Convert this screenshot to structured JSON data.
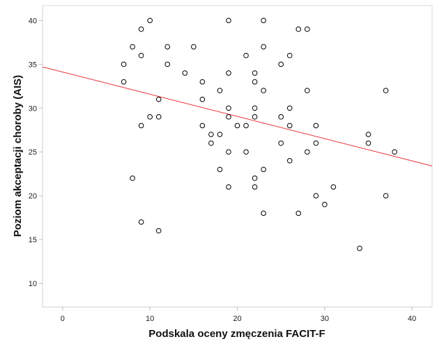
{
  "chart_data": {
    "type": "scatter",
    "title": "",
    "xlabel": "Podskala oceny zmęczenia FACIT-F",
    "ylabel": "Poziom akceptacji choroby (AIS)",
    "xlim": [
      -2.3,
      42.3
    ],
    "ylim": [
      7.3,
      41.7
    ],
    "x_ticks": [
      0,
      10,
      20,
      30,
      40
    ],
    "y_ticks": [
      10,
      15,
      20,
      25,
      30,
      35,
      40
    ],
    "x_tick_labels": [
      "0",
      "10",
      "20",
      "30",
      "40"
    ],
    "y_tick_labels": [
      "10",
      "15",
      "20",
      "25",
      "30",
      "35",
      "40"
    ],
    "grid": false,
    "legend": "none",
    "marker": "open-circle",
    "marker_color": "#000000",
    "fit_line": {
      "type": "linear",
      "color": "#e8323c",
      "points": [
        [
          -2.3,
          34.7
        ],
        [
          42.3,
          23.4
        ]
      ]
    },
    "points": [
      [
        7,
        35
      ],
      [
        7,
        33
      ],
      [
        8,
        37
      ],
      [
        8,
        22
      ],
      [
        9,
        39
      ],
      [
        9,
        36
      ],
      [
        9,
        28
      ],
      [
        9,
        17
      ],
      [
        10,
        40
      ],
      [
        10,
        29
      ],
      [
        11,
        31
      ],
      [
        11,
        29
      ],
      [
        11,
        16
      ],
      [
        12,
        37
      ],
      [
        12,
        35
      ],
      [
        14,
        34
      ],
      [
        15,
        37
      ],
      [
        16,
        33
      ],
      [
        16,
        31
      ],
      [
        16,
        28
      ],
      [
        17,
        27
      ],
      [
        17,
        26
      ],
      [
        18,
        32
      ],
      [
        18,
        27
      ],
      [
        18,
        23
      ],
      [
        19,
        40
      ],
      [
        19,
        34
      ],
      [
        19,
        30
      ],
      [
        19,
        29
      ],
      [
        19,
        25
      ],
      [
        19,
        21
      ],
      [
        20,
        28
      ],
      [
        21,
        36
      ],
      [
        21,
        28
      ],
      [
        21,
        25
      ],
      [
        22,
        34
      ],
      [
        22,
        33
      ],
      [
        22,
        30
      ],
      [
        22,
        29
      ],
      [
        22,
        22
      ],
      [
        22,
        21
      ],
      [
        23,
        40
      ],
      [
        23,
        37
      ],
      [
        23,
        32
      ],
      [
        23,
        23
      ],
      [
        23,
        18
      ],
      [
        25,
        35
      ],
      [
        25,
        29
      ],
      [
        25,
        26
      ],
      [
        26,
        36
      ],
      [
        26,
        30
      ],
      [
        26,
        28
      ],
      [
        26,
        24
      ],
      [
        27,
        39
      ],
      [
        27,
        18
      ],
      [
        28,
        39
      ],
      [
        28,
        32
      ],
      [
        28,
        25
      ],
      [
        29,
        28
      ],
      [
        29,
        26
      ],
      [
        29,
        20
      ],
      [
        30,
        19
      ],
      [
        31,
        21
      ],
      [
        34,
        14
      ],
      [
        35,
        27
      ],
      [
        35,
        26
      ],
      [
        37,
        32
      ],
      [
        37,
        20
      ],
      [
        38,
        25
      ]
    ]
  }
}
